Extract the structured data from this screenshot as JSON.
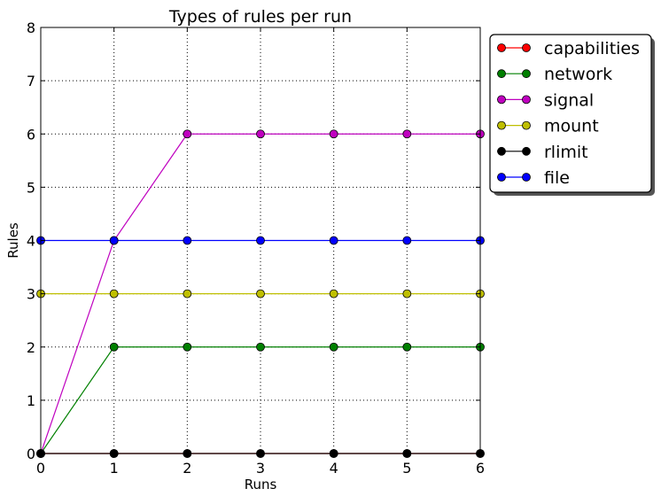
{
  "chart_data": {
    "type": "line",
    "title": "Types of rules per run",
    "xlabel": "Runs",
    "ylabel": "Rules",
    "x": [
      0,
      1,
      2,
      3,
      4,
      5,
      6
    ],
    "xlim": [
      0,
      6
    ],
    "ylim": [
      0,
      8
    ],
    "xticks": [
      "0",
      "1",
      "2",
      "3",
      "4",
      "5",
      "6"
    ],
    "yticks": [
      "0",
      "1",
      "2",
      "3",
      "4",
      "5",
      "6",
      "7",
      "8"
    ],
    "grid": true,
    "legend_position": "outside-upper-right",
    "series": [
      {
        "name": "capabilities",
        "color": "#ff0000",
        "values": [
          0,
          0,
          0,
          0,
          0,
          0,
          0
        ]
      },
      {
        "name": "network",
        "color": "#008000",
        "values": [
          0,
          2,
          2,
          2,
          2,
          2,
          2
        ]
      },
      {
        "name": "signal",
        "color": "#bf00bf",
        "values": [
          0,
          4,
          6,
          6,
          6,
          6,
          6
        ]
      },
      {
        "name": "mount",
        "color": "#bfbf00",
        "values": [
          3,
          3,
          3,
          3,
          3,
          3,
          3
        ]
      },
      {
        "name": "rlimit",
        "color": "#000000",
        "values": [
          0,
          0,
          0,
          0,
          0,
          0,
          0
        ]
      },
      {
        "name": "file",
        "color": "#0000ff",
        "values": [
          4,
          4,
          4,
          4,
          4,
          4,
          4
        ]
      }
    ]
  }
}
